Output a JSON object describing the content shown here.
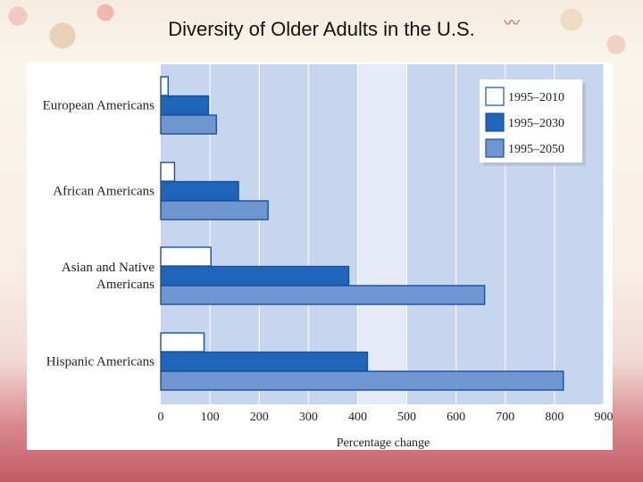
{
  "slide": {
    "title": "Diversity of Older Adults in the U.S."
  },
  "chart_data": {
    "type": "bar",
    "orientation": "horizontal",
    "title": "",
    "xlabel": "Percentage change",
    "ylabel": "",
    "xlim": [
      0,
      900
    ],
    "xticks": [
      0,
      100,
      200,
      300,
      400,
      500,
      600,
      700,
      800,
      900
    ],
    "categories": [
      [
        "European Americans"
      ],
      [
        "African Americans"
      ],
      [
        "Asian and Native",
        "Americans"
      ],
      [
        "Hispanic Americans"
      ]
    ],
    "series": [
      {
        "name": "1995–2010",
        "color": "#ffffff",
        "values": [
          15,
          28,
          102,
          88
        ]
      },
      {
        "name": "1995–2030",
        "color": "#1f66b8",
        "values": [
          97,
          158,
          382,
          420
        ]
      },
      {
        "name": "1995–2050",
        "color": "#6f96d1",
        "values": [
          113,
          218,
          658,
          818
        ]
      }
    ],
    "legend_position": "top-right",
    "colors": {
      "plot_background": "#c7d6ee",
      "plot_background_light": "#eef2fa",
      "bar_stroke": "#1a4f9a",
      "grid": "#ffffff"
    }
  }
}
